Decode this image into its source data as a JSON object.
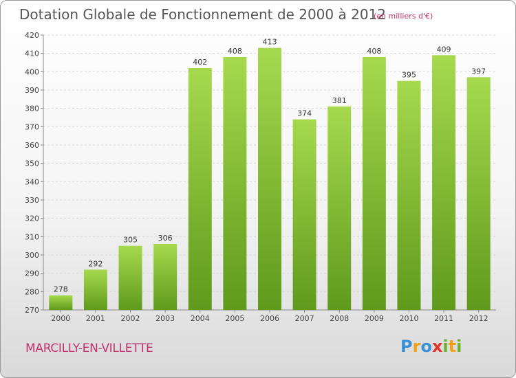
{
  "chart_data": {
    "type": "bar",
    "title": "Dotation Globale de Fonctionnement de 2000 à 2012",
    "subtitle": "(en milliers d'€)",
    "categories": [
      "2000",
      "2001",
      "2002",
      "2003",
      "2004",
      "2005",
      "2006",
      "2007",
      "2008",
      "2009",
      "2010",
      "2011",
      "2012"
    ],
    "values": [
      278,
      292,
      305,
      306,
      402,
      408,
      413,
      374,
      381,
      408,
      395,
      409,
      397
    ],
    "ylim": [
      270,
      420
    ],
    "yticks": [
      270,
      280,
      290,
      300,
      310,
      320,
      330,
      340,
      350,
      360,
      370,
      380,
      390,
      400,
      410,
      420
    ],
    "grid": true,
    "legend": "none",
    "bar_color": "#7dbb2c",
    "bar_color_light": "#a6d94e",
    "bar_color_dark": "#5f9a1c"
  },
  "footer": {
    "commune": "MARCILLY-EN-VILLETTE",
    "logo_letters": [
      "P",
      "r",
      "o",
      "x",
      "i",
      "t",
      "i"
    ],
    "logo_colors": [
      "#3b8fd6",
      "#f0a21b",
      "#3b8fd6",
      "#e5332a",
      "#69b12e",
      "#f0a21b",
      "#69b12e"
    ]
  }
}
